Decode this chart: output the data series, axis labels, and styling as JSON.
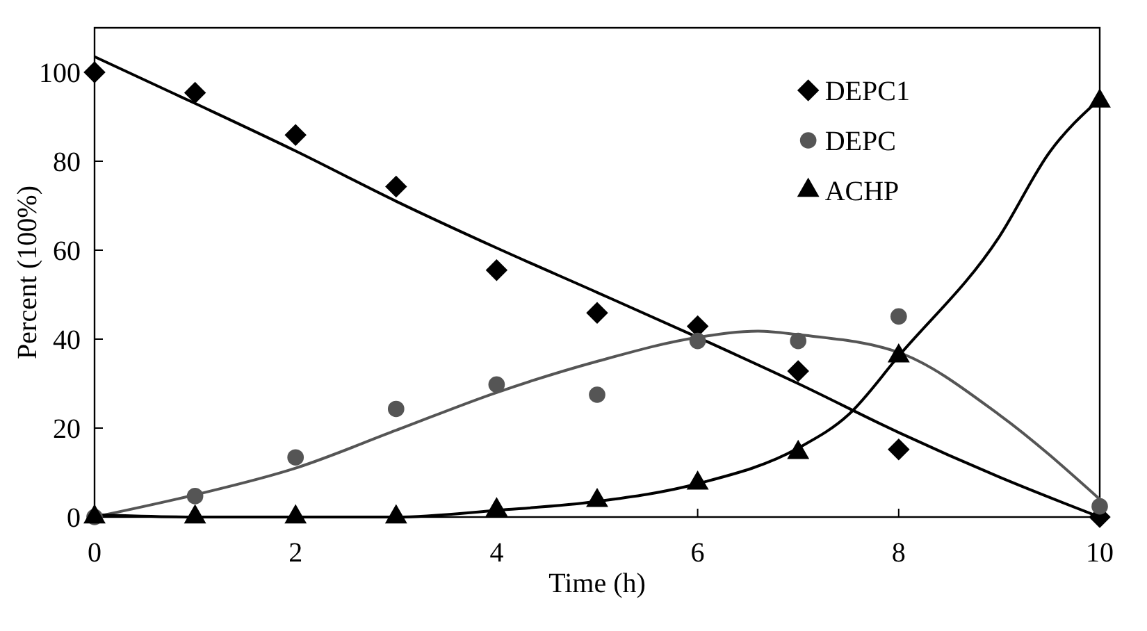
{
  "chart_data": {
    "type": "scatter",
    "xlabel": "Time (h)",
    "ylabel": "Percent (100%)",
    "xlim": [
      0,
      10
    ],
    "ylim": [
      0,
      110
    ],
    "xticks": [
      0,
      2,
      4,
      6,
      8,
      10
    ],
    "yticks": [
      0,
      20,
      40,
      60,
      80,
      100
    ],
    "grid": false,
    "legend": "top right",
    "x": [
      0,
      1,
      2,
      3,
      4,
      5,
      6,
      7,
      8,
      10
    ],
    "series": [
      {
        "name": "DEPC1",
        "color": "#000000",
        "marker": "diamond",
        "values": [
          100,
          95.4,
          85.9,
          74.3,
          55.5,
          45.9,
          42.9,
          32.8,
          15.2,
          0
        ]
      },
      {
        "name": "DEPC",
        "color": "#555555",
        "marker": "circle",
        "values": [
          0,
          4.7,
          13.4,
          24.3,
          29.8,
          27.5,
          39.6,
          39.6,
          45.1,
          2.4
        ]
      },
      {
        "name": "ACHP",
        "color": "#000000",
        "marker": "triangle",
        "values": [
          0,
          0,
          0,
          0,
          1.6,
          3.7,
          7.6,
          14.5,
          36.2,
          93.5
        ]
      },
      {
        "type": "line",
        "color": "#000000",
        "marker": "none",
        "x": [
          0,
          1,
          2,
          3,
          4,
          5,
          6,
          7,
          8,
          9,
          10
        ],
        "values": [
          103.5,
          93,
          82.3,
          71,
          60.5,
          50.5,
          40.4,
          30,
          19,
          9,
          0
        ]
      },
      {
        "type": "line",
        "color": "#555555",
        "marker": "none",
        "x": [
          0,
          1,
          2,
          3,
          4,
          5,
          6,
          6.6,
          7,
          8,
          9,
          10
        ],
        "values": [
          0,
          5,
          11,
          19.5,
          28,
          35,
          40.4,
          41.8,
          41,
          37,
          23,
          4
        ]
      },
      {
        "type": "line",
        "color": "#000000",
        "marker": "none",
        "x": [
          0,
          1,
          2,
          3,
          4,
          5,
          6,
          7,
          7.5,
          8,
          9,
          9.5,
          10
        ],
        "values": [
          0.5,
          0,
          0,
          0,
          1.5,
          3.5,
          7.5,
          15.5,
          23,
          36.2,
          63,
          82,
          94
        ]
      }
    ]
  }
}
